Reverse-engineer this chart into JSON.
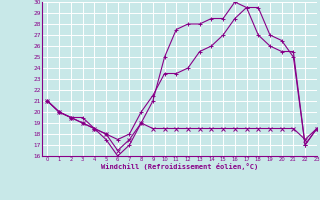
{
  "xlabel": "Windchill (Refroidissement éolien,°C)",
  "ylim": [
    16,
    30
  ],
  "xlim": [
    -0.5,
    23
  ],
  "yticks": [
    16,
    17,
    18,
    19,
    20,
    21,
    22,
    23,
    24,
    25,
    26,
    27,
    28,
    29,
    30
  ],
  "xticks": [
    0,
    1,
    2,
    3,
    4,
    5,
    6,
    7,
    8,
    9,
    10,
    11,
    12,
    13,
    14,
    15,
    16,
    17,
    18,
    19,
    20,
    21,
    22,
    23
  ],
  "bg_color": "#c8e8e8",
  "grid_color": "#ffffff",
  "line_color": "#880088",
  "line1_x": [
    0,
    1,
    2,
    3,
    4,
    5,
    6,
    7,
    8,
    9,
    10,
    11,
    12,
    13,
    14,
    15,
    16,
    17,
    18,
    19,
    20,
    21,
    22,
    23
  ],
  "line1_y": [
    21.0,
    20.0,
    19.5,
    19.0,
    18.5,
    18.0,
    16.5,
    17.5,
    19.0,
    18.5,
    18.5,
    18.5,
    18.5,
    18.5,
    18.5,
    18.5,
    18.5,
    18.5,
    18.5,
    18.5,
    18.5,
    18.5,
    17.5,
    18.5
  ],
  "line2_x": [
    0,
    1,
    2,
    3,
    4,
    5,
    6,
    7,
    8,
    9,
    10,
    11,
    12,
    13,
    14,
    15,
    16,
    17,
    18,
    19,
    20,
    21,
    22,
    23
  ],
  "line2_y": [
    21.0,
    20.0,
    19.5,
    19.0,
    18.5,
    17.5,
    16.0,
    17.0,
    19.0,
    21.0,
    25.0,
    27.5,
    28.0,
    28.0,
    28.5,
    28.5,
    30.0,
    29.5,
    27.0,
    26.0,
    25.5,
    25.5,
    17.0,
    18.5
  ],
  "line3_x": [
    0,
    1,
    2,
    3,
    4,
    5,
    6,
    7,
    8,
    9,
    10,
    11,
    12,
    13,
    14,
    15,
    16,
    17,
    18,
    19,
    20,
    21,
    22,
    23
  ],
  "line3_y": [
    21.0,
    20.0,
    19.5,
    19.5,
    18.5,
    18.0,
    17.5,
    18.0,
    20.0,
    21.5,
    23.5,
    23.5,
    24.0,
    25.5,
    26.0,
    27.0,
    28.5,
    29.5,
    29.5,
    27.0,
    26.5,
    25.0,
    17.0,
    18.5
  ]
}
